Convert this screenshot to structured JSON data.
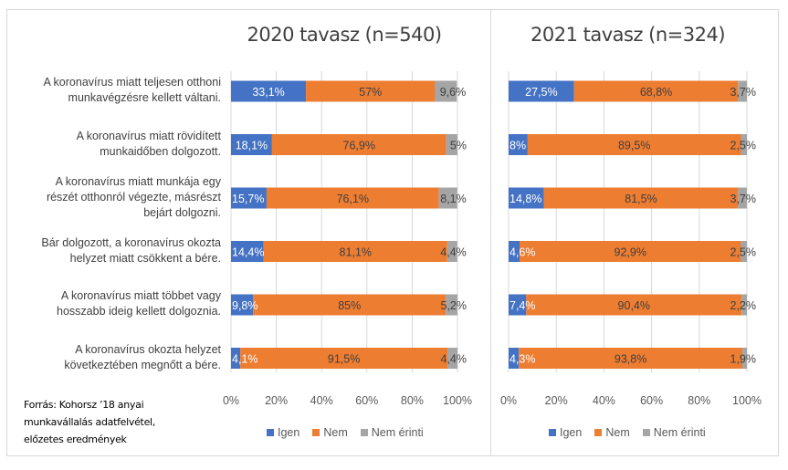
{
  "chart_data": [
    {
      "type": "bar",
      "orientation": "horizontal",
      "stacked": "100%",
      "title": "2020 tavasz (n=540)",
      "categories": [
        "A koronavírus miatt teljesen otthoni munkavégzésre kellett váltani.",
        "A koronavírus miatt rövidített munkaidőben dolgozott.",
        "A koronavírus miatt munkája egy részét otthonról végezte, másrészt bejárt dolgozni.",
        "Bár dolgozott, a koronavírus okozta helyzet miatt csökkent a bére.",
        "A koronavírus miatt többet vagy hosszabb ideig kellett dolgoznia.",
        "A koronavírus okozta helyzet következtében megnőtt a bére."
      ],
      "series": [
        {
          "name": "Igen",
          "color": "#4472c4",
          "values": [
            33.1,
            18.1,
            15.7,
            14.4,
            9.8,
            4.1
          ],
          "labels": [
            "33,1%",
            "18,1%",
            "15,7%",
            "14,4%",
            "9,8%",
            "4,1%"
          ]
        },
        {
          "name": "Nem",
          "color": "#ed7d31",
          "values": [
            57,
            76.9,
            76.1,
            81.1,
            85,
            91.5
          ],
          "labels": [
            "57%",
            "76,9%",
            "76,1%",
            "81,1%",
            "85%",
            "91,5%"
          ]
        },
        {
          "name": "Nem érinti",
          "color": "#a5a5a5",
          "values": [
            9.6,
            5,
            8.1,
            4.4,
            5.2,
            4.4
          ],
          "labels": [
            "9,6%",
            "5%",
            "8,1%",
            "4,4%",
            "5,2%",
            "4,4%"
          ]
        }
      ],
      "xticks": [
        "0%",
        "20%",
        "40%",
        "60%",
        "80%",
        "100%"
      ],
      "xlim": [
        0,
        100
      ],
      "grid": true,
      "legend": "bottom"
    },
    {
      "type": "bar",
      "orientation": "horizontal",
      "stacked": "100%",
      "title": "2021 tavasz (n=324)",
      "categories": [
        "A koronavírus miatt teljesen otthoni munkavégzésre kellett váltani.",
        "A koronavírus miatt rövidített munkaidőben dolgozott.",
        "A koronavírus miatt munkája egy részét otthonról végezte, másrészt bejárt dolgozni.",
        "Bár dolgozott, a koronavírus okozta helyzet miatt csökkent a bére.",
        "A koronavírus miatt többet vagy hosszabb ideig kellett dolgoznia.",
        "A koronavírus okozta helyzet következtében megnőtt a bére."
      ],
      "series": [
        {
          "name": "Igen",
          "color": "#4472c4",
          "values": [
            27.5,
            8,
            14.8,
            4.6,
            7.4,
            4.3
          ],
          "labels": [
            "27,5%",
            "8%",
            "14,8%",
            "4,6%",
            "7,4%",
            "4,3%"
          ]
        },
        {
          "name": "Nem",
          "color": "#ed7d31",
          "values": [
            68.8,
            89.5,
            81.5,
            92.9,
            90.4,
            93.8
          ],
          "labels": [
            "68,8%",
            "89,5%",
            "81,5%",
            "92,9%",
            "90,4%",
            "93,8%"
          ]
        },
        {
          "name": "Nem érinti",
          "color": "#a5a5a5",
          "values": [
            3.7,
            2.5,
            3.7,
            2.5,
            2.2,
            1.9
          ],
          "labels": [
            "3,7%",
            "2,5%",
            "3,7%",
            "2,5%",
            "2,2%",
            "1,9%"
          ]
        }
      ],
      "xticks": [
        "0%",
        "20%",
        "40%",
        "60%",
        "80%",
        "100%"
      ],
      "xlim": [
        0,
        100
      ],
      "grid": true,
      "legend": "bottom"
    }
  ],
  "category_labels": [
    [
      "A koronavírus miatt teljesen otthoni",
      "munkavégzésre kellett váltani."
    ],
    [
      "A koronavírus miatt rövidített",
      "munkaidőben dolgozott."
    ],
    [
      "A koronavírus miatt munkája egy",
      "részét otthonról végezte, másrészt",
      "bejárt dolgozni."
    ],
    [
      "Bár dolgozott, a koronavírus okozta",
      "helyzet miatt csökkent a bére."
    ],
    [
      "A koronavírus miatt többet vagy",
      "hosszabb ideig kellett dolgoznia."
    ],
    [
      "A koronavírus okozta helyzet",
      "következtében megnőtt a bére."
    ]
  ],
  "source_lines": [
    "Forrás: Kohorsz ’18 anyai",
    "munkavállalás adatfelvétel,",
    "előzetes eredmények"
  ],
  "legend": [
    {
      "label": "Igen",
      "color": "#4472c4"
    },
    {
      "label": "Nem",
      "color": "#ed7d31"
    },
    {
      "label": "Nem érinti",
      "color": "#a5a5a5"
    }
  ]
}
